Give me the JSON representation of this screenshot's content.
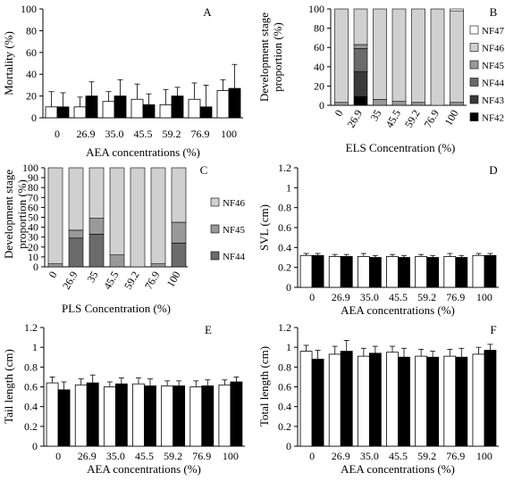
{
  "colors": {
    "white": "#ffffff",
    "black": "#000000",
    "nf42": "#000000",
    "nf43": "#3a3a3a",
    "nf44": "#6b6b6b",
    "nf45": "#999999",
    "nf46": "#d0d0d0",
    "nf47": "#ffffff"
  },
  "chart_data": [
    {
      "panel": "A",
      "type": "bar",
      "categories": [
        "0",
        "26.9",
        "35.0",
        "45.5",
        "59.2",
        "76.9",
        "100"
      ],
      "series": [
        {
          "values": [
            10,
            10,
            15,
            17,
            12,
            17,
            25
          ],
          "errors": [
            14,
            9,
            9,
            14,
            14,
            15,
            10
          ],
          "color": "#ffffff"
        },
        {
          "values": [
            10,
            20,
            20,
            12,
            20,
            10,
            27
          ],
          "errors": [
            13,
            13,
            15,
            10,
            8,
            20,
            22
          ],
          "color": "#000000"
        }
      ],
      "xlabel": "AEA concentrations (%)",
      "ylabel": "Mortality (%)",
      "ylim": [
        0,
        100
      ],
      "yticks": [
        "0",
        "20",
        "40",
        "60",
        "80",
        "100"
      ]
    },
    {
      "panel": "B",
      "type": "bar",
      "stacked": true,
      "categories": [
        "0",
        "26.9",
        "35",
        "45.5",
        "59.2",
        "76.9",
        "100"
      ],
      "series": [
        {
          "name": "NF42",
          "values": [
            0,
            9,
            0,
            0,
            0,
            0,
            0
          ]
        },
        {
          "name": "NF43",
          "values": [
            0,
            26,
            0,
            0,
            0,
            0,
            0
          ]
        },
        {
          "name": "NF44",
          "values": [
            0,
            24,
            0,
            0,
            0,
            0,
            0
          ]
        },
        {
          "name": "NF45",
          "values": [
            3,
            4,
            6,
            4,
            3,
            0,
            3
          ]
        },
        {
          "name": "NF46",
          "values": [
            97,
            37,
            94,
            96,
            97,
            100,
            95
          ]
        },
        {
          "name": "NF47",
          "values": [
            0,
            0,
            0,
            0,
            0,
            0,
            2
          ]
        }
      ],
      "xlabel": "ELS Concentration (%)",
      "ylabel": "Development stage proportion (%)",
      "ylim": [
        0,
        100
      ],
      "yticks": [
        "0",
        "20",
        "40",
        "60",
        "80",
        "100"
      ],
      "legend": [
        "NF47",
        "NF46",
        "NF45",
        "NF44",
        "NF43",
        "NF42"
      ],
      "legend_placement": "right"
    },
    {
      "panel": "C",
      "type": "bar",
      "stacked": true,
      "categories": [
        "0",
        "26.9",
        "35",
        "45.5",
        "59.2",
        "76.9",
        "100"
      ],
      "series": [
        {
          "name": "NF44",
          "values": [
            0,
            29,
            33,
            0,
            0,
            0,
            24
          ]
        },
        {
          "name": "NF45",
          "values": [
            3,
            8,
            16,
            12,
            0,
            3,
            21
          ]
        },
        {
          "name": "NF46",
          "values": [
            97,
            63,
            51,
            88,
            100,
            97,
            55
          ]
        }
      ],
      "xlabel": "PLS Concentration (%)",
      "ylabel": "Development stage proportion (%)",
      "ylim": [
        0,
        100
      ],
      "yticks": [
        "0",
        "10",
        "20",
        "30",
        "40",
        "50",
        "60",
        "70",
        "80",
        "90",
        "100"
      ],
      "legend": [
        "NF46",
        "NF45",
        "NF44"
      ],
      "legend_placement": "right"
    },
    {
      "panel": "D",
      "type": "bar",
      "categories": [
        "0",
        "26.9",
        "35.0",
        "45.5",
        "59.2",
        "76.9",
        "100"
      ],
      "series": [
        {
          "values": [
            0.32,
            0.31,
            0.31,
            0.31,
            0.31,
            0.31,
            0.32
          ],
          "errors": [
            0.02,
            0.02,
            0.03,
            0.02,
            0.02,
            0.03,
            0.02
          ],
          "color": "#ffffff"
        },
        {
          "values": [
            0.32,
            0.31,
            0.3,
            0.3,
            0.3,
            0.3,
            0.32
          ],
          "errors": [
            0.02,
            0.02,
            0.02,
            0.02,
            0.02,
            0.02,
            0.02
          ],
          "color": "#000000"
        }
      ],
      "xlabel": "AEA concentrations (%)",
      "ylabel": "SVL (cm)",
      "ylim": [
        0,
        1.2
      ],
      "yticks": [
        "0",
        "0.2",
        "0.4",
        "0.6",
        "0.8",
        "1",
        "1.2"
      ]
    },
    {
      "panel": "E",
      "type": "bar",
      "categories": [
        "0",
        "26.9",
        "35.0",
        "45.5",
        "59.2",
        "76.9",
        "100"
      ],
      "series": [
        {
          "values": [
            0.64,
            0.62,
            0.6,
            0.63,
            0.61,
            0.6,
            0.62
          ],
          "errors": [
            0.06,
            0.06,
            0.05,
            0.06,
            0.05,
            0.06,
            0.05
          ],
          "color": "#ffffff"
        },
        {
          "values": [
            0.57,
            0.64,
            0.63,
            0.61,
            0.61,
            0.61,
            0.65
          ],
          "errors": [
            0.08,
            0.08,
            0.06,
            0.07,
            0.05,
            0.06,
            0.05
          ],
          "color": "#000000"
        }
      ],
      "xlabel": "AEA concentrations (%)",
      "ylabel": "Tail length (cm)",
      "ylim": [
        0,
        1.2
      ],
      "yticks": [
        "0",
        "0.2",
        "0.4",
        "0.6",
        "0.8",
        "1",
        "1.2"
      ]
    },
    {
      "panel": "F",
      "type": "bar",
      "categories": [
        "0",
        "26.9",
        "35.0",
        "45.5",
        "59.2",
        "76.9",
        "100"
      ],
      "series": [
        {
          "values": [
            0.96,
            0.93,
            0.91,
            0.95,
            0.91,
            0.91,
            0.93
          ],
          "errors": [
            0.06,
            0.08,
            0.08,
            0.06,
            0.07,
            0.07,
            0.07
          ],
          "color": "#ffffff"
        },
        {
          "values": [
            0.88,
            0.96,
            0.94,
            0.9,
            0.9,
            0.9,
            0.97
          ],
          "errors": [
            0.09,
            0.11,
            0.07,
            0.09,
            0.06,
            0.09,
            0.06
          ],
          "color": "#000000"
        }
      ],
      "xlabel": "AEA concentrations (%)",
      "ylabel": "Total length (cm)",
      "ylim": [
        0,
        1.2
      ],
      "yticks": [
        "0",
        "0.2",
        "0.4",
        "0.6",
        "0.8",
        "1",
        "1.2"
      ]
    }
  ]
}
